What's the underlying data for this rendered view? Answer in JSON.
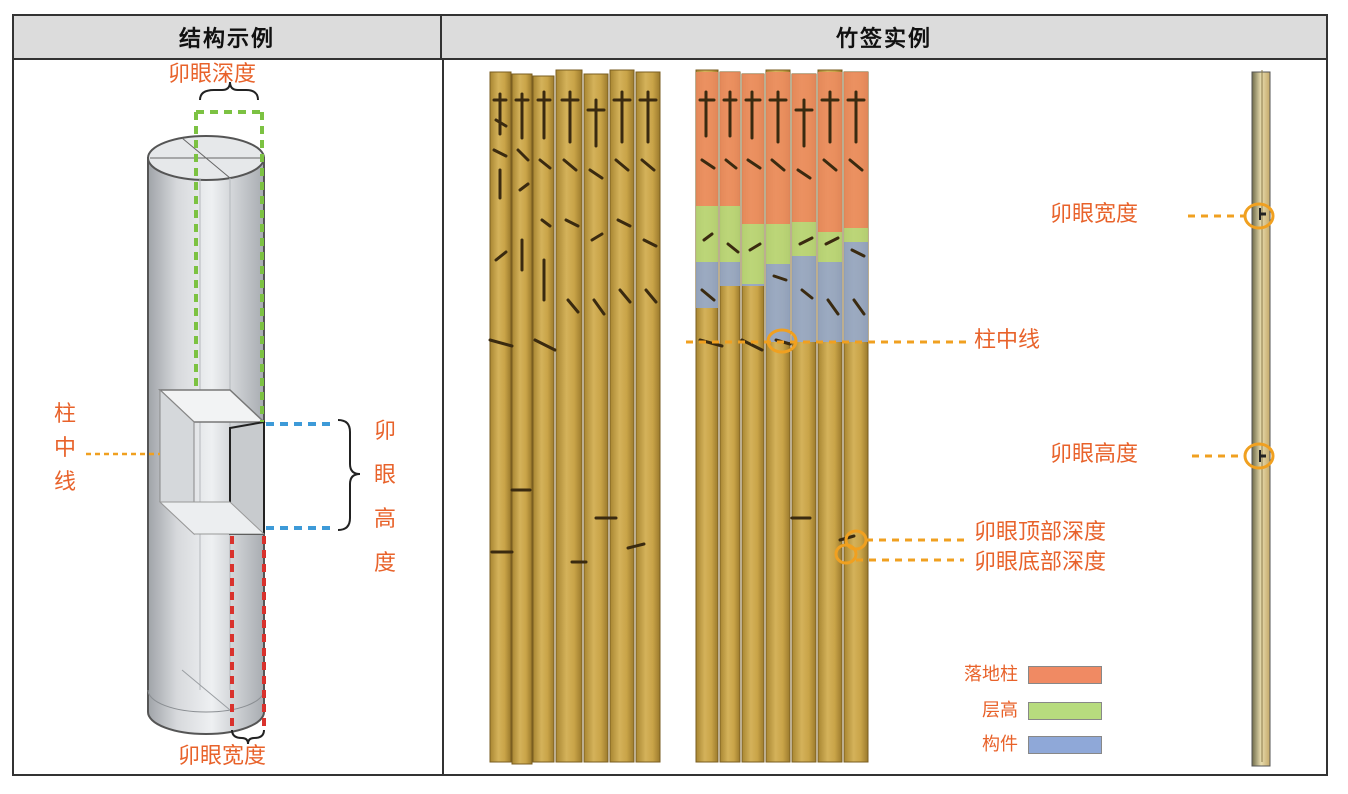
{
  "headers": {
    "left": "结构示例",
    "right": "竹签实例"
  },
  "left_labels": {
    "mortise_depth": "卯眼深度",
    "mortise_width": "卯眼宽度",
    "column_center_line": [
      "柱",
      "中",
      "线"
    ],
    "mortise_height": [
      "卯",
      "眼",
      "高",
      "度"
    ]
  },
  "right_labels": {
    "column_center_line": "柱中线",
    "mortise_width": "卯眼宽度",
    "mortise_height": "卯眼高度",
    "mortise_top_depth": "卯眼顶部深度",
    "mortise_bottom_depth": "卯眼底部深度"
  },
  "legend": [
    {
      "label": "落地柱",
      "color": "#f08a63"
    },
    {
      "label": "层高",
      "color": "#b7dc7e"
    },
    {
      "label": "构件",
      "color": "#8fa8d8"
    }
  ],
  "colors": {
    "label_orange": "#e8622a",
    "callout_orange": "#f0a020",
    "green_dash": "#7cc242",
    "blue_dash": "#3d9ad8",
    "red_dash": "#d9322d",
    "bamboo": "#c8a24a"
  }
}
